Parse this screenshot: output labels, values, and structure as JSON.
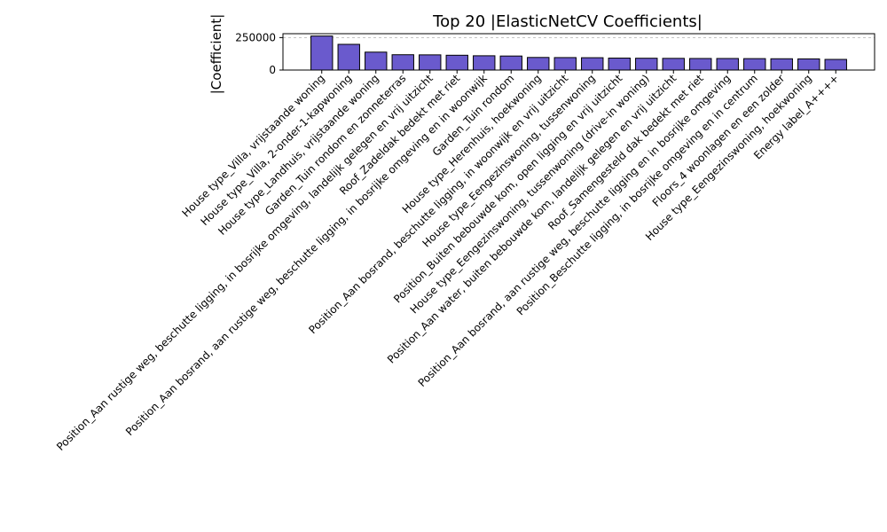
{
  "chart_data": {
    "type": "bar",
    "title": "Top 20 |ElasticNetCV Coefficients|",
    "xlabel": "",
    "ylabel": "|Coefficient|",
    "ylim": [
      0,
      280000
    ],
    "yticks": [
      0,
      250000
    ],
    "ytick_labels": [
      "0",
      "250000"
    ],
    "grid": "y-dashed",
    "bar_color": "#6a5acd",
    "bar_edge_color": "#000000",
    "grid_color": "#b0b0b0",
    "categories": [
      "House type_Villa, vrijstaande woning",
      "House type_Villa, 2-onder-1-kapwoning",
      "House type_Landhuis, vrijstaande woning",
      "Garden_Tuin rondom en zonneterras",
      "Position_Aan rustige weg, beschutte ligging, in bosrijke omgeving, landelijk gelegen en vrij uitzicht",
      "Roof_Zadeldak bedekt met riet",
      "Position_Aan bosrand, aan rustige weg, beschutte ligging, in bosrijke omgeving en in woonwijk",
      "Garden_Tuin rondom",
      "House type_Herenhuis, hoekwoning",
      "Position_Aan bosrand, beschutte ligging, in woonwijk en vrij uitzicht",
      "House type_Eengezinswoning, tussenwoning",
      "Position_Buiten bebouwde kom, open ligging en vrij uitzicht",
      "House type_Eengezinswoning, tussenwoning (drive-in woning)",
      "Position_Aan water, buiten bebouwde kom, landelijk gelegen en vrij uitzicht",
      "Roof_Samengesteld dak bedekt met riet",
      "Position_Aan bosrand, aan rustige weg, beschutte ligging en in bosrijke omgeving",
      "Position_Beschutte ligging, in bosrijke omgeving en in centrum",
      "Floors_4 woonlagen en een zolder",
      "House type_Eengezinswoning, hoekwoning",
      "Energy label_A++++"
    ],
    "values": [
      262000,
      198000,
      138000,
      118000,
      117000,
      114000,
      110000,
      108000,
      97000,
      96000,
      95000,
      92000,
      91000,
      90000,
      89000,
      89000,
      88000,
      87000,
      86000,
      82000
    ]
  }
}
